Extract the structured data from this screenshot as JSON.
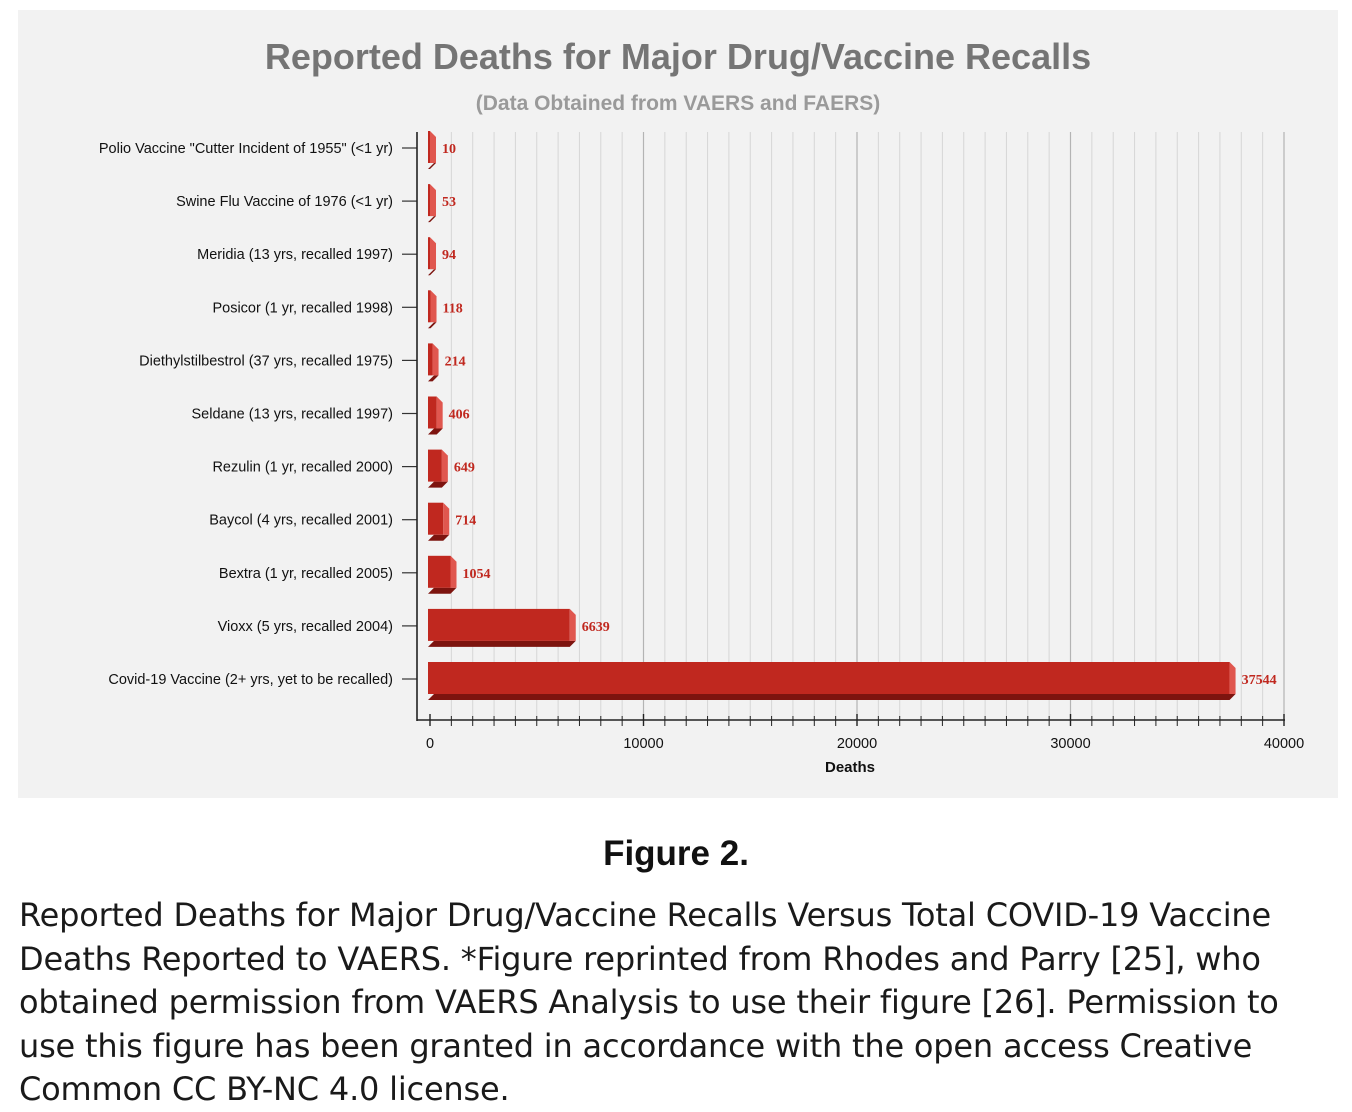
{
  "chart_data": {
    "type": "bar",
    "orientation": "horizontal",
    "title": "Reported Deaths for Major Drug/Vaccine Recalls",
    "subtitle": "(Data Obtained from VAERS and FAERS)",
    "xlabel": "Deaths",
    "ylabel": "",
    "xlim": [
      0,
      40000
    ],
    "x_ticks": [
      "0",
      "10000",
      "20000",
      "30000",
      "40000"
    ],
    "grid": "vertical",
    "bar_color": "#c0281f",
    "categories": [
      "Polio Vaccine \"Cutter Incident of 1955\" (<1 yr)",
      "Swine Flu Vaccine of 1976 (<1 yr)",
      "Meridia (13 yrs, recalled 1997)",
      "Posicor (1 yr, recalled 1998)",
      "Diethylstilbestrol (37 yrs, recalled 1975)",
      "Seldane (13 yrs, recalled 1997)",
      "Rezulin (1 yr, recalled 2000)",
      "Baycol (4 yrs, recalled 2001)",
      "Bextra (1 yr, recalled 2005)",
      "Vioxx (5 yrs, recalled 2004)",
      "Covid-19 Vaccine (2+ yrs, yet to be recalled)"
    ],
    "values": [
      10,
      53,
      94,
      118,
      214,
      406,
      649,
      714,
      1054,
      6639,
      37544
    ],
    "data_labels": [
      "10",
      "53",
      "94",
      "118",
      "214",
      "406",
      "649",
      "714",
      "1054",
      "6639",
      "37544"
    ]
  },
  "figure": {
    "label": "Figure 2.",
    "caption": "Reported Deaths for Major Drug/Vaccine Recalls Versus Total COVID-19 Vaccine Deaths Reported to VAERS. *Figure reprinted from Rhodes and Parry [25], who obtained permission from VAERS Analysis to use their figure [26]. Permission to use this figure has been granted in accordance with the open access Creative Common CC BY-NC 4.0 license."
  }
}
